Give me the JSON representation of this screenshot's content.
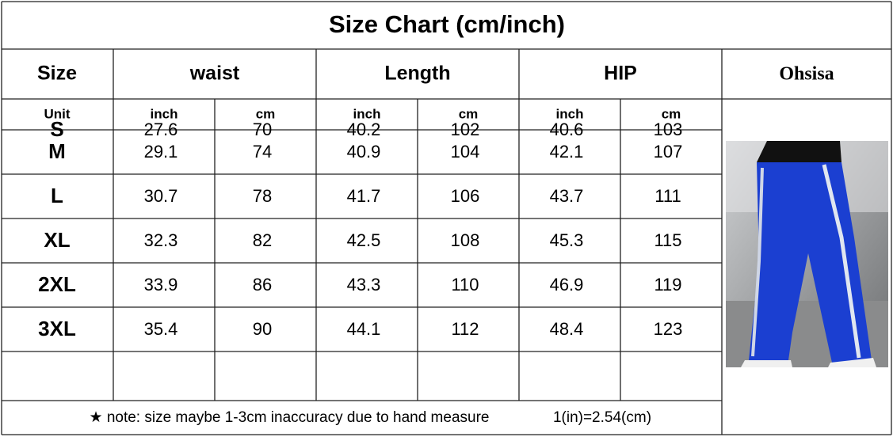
{
  "title": "Size Chart (cm/inch)",
  "brand": "Ohsisa",
  "header": {
    "size": "Size",
    "groups": [
      "waist",
      "Length",
      "HIP"
    ]
  },
  "units": {
    "label": "Unit",
    "values": [
      "inch",
      "cm",
      "inch",
      "cm",
      "inch",
      "cm"
    ]
  },
  "rows": [
    {
      "size": "S",
      "values": [
        27.6,
        70,
        40.2,
        102,
        40.6,
        103
      ]
    },
    {
      "size": "M",
      "values": [
        29.1,
        74,
        40.9,
        104,
        42.1,
        107
      ]
    },
    {
      "size": "L",
      "values": [
        30.7,
        78,
        41.7,
        106,
        43.7,
        111
      ]
    },
    {
      "size": "XL",
      "values": [
        32.3,
        82,
        42.5,
        108,
        45.3,
        115
      ]
    },
    {
      "size": "2XL",
      "values": [
        33.9,
        86,
        43.3,
        110,
        46.9,
        119
      ]
    },
    {
      "size": "3XL",
      "values": [
        35.4,
        90,
        44.1,
        112,
        48.4,
        123
      ]
    }
  ],
  "note": "★ note: size maybe 1-3cm inaccuracy due to hand measure",
  "conversion": "1(in)=2.54(cm)"
}
